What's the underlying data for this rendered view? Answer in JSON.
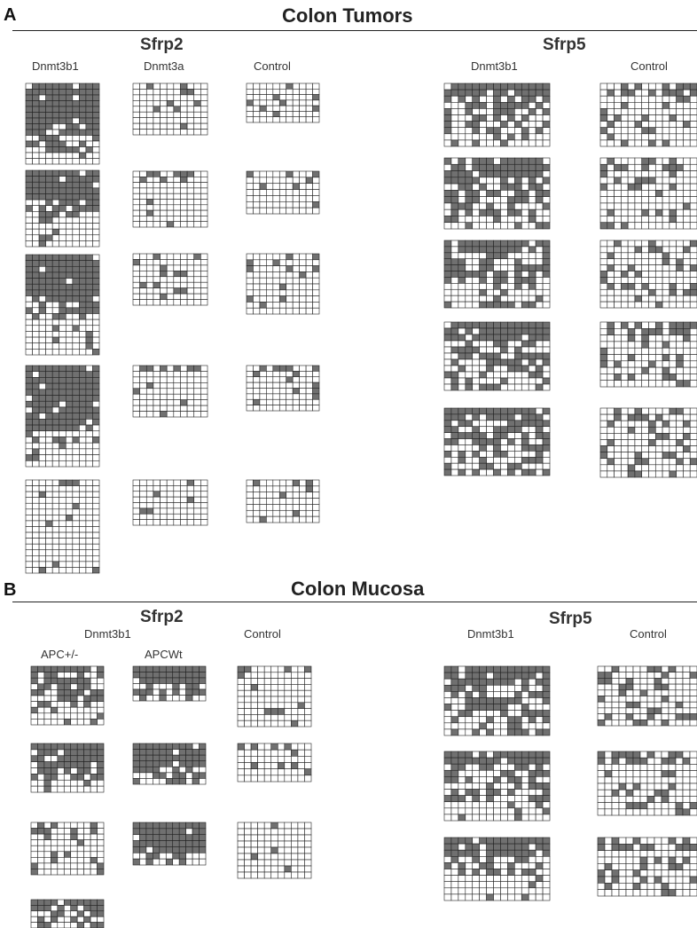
{
  "panel_a": {
    "letter": "A",
    "title": "Colon Tumors",
    "sfrp2": {
      "gene": "Sfrp2",
      "cols": [
        "Dnmt3b1",
        "Dnmt3a",
        "Control"
      ]
    },
    "sfrp5": {
      "gene": "Sfrp5",
      "cols": [
        "Dnmt3b1",
        "Control"
      ]
    }
  },
  "panel_b": {
    "letter": "B",
    "title": "Colon Mucosa",
    "sfrp2": {
      "gene": "Sfrp2",
      "group": "Dnmt3b1",
      "cols": [
        "APC+/-",
        "APCWt",
        "Control"
      ]
    },
    "sfrp5": {
      "gene": "Sfrp5",
      "cols": [
        "Dnmt3b1",
        "Control"
      ]
    }
  },
  "colors": {
    "methylated": "#707070",
    "unmethylated": "#ffffff",
    "grid_line": "#222222"
  }
}
